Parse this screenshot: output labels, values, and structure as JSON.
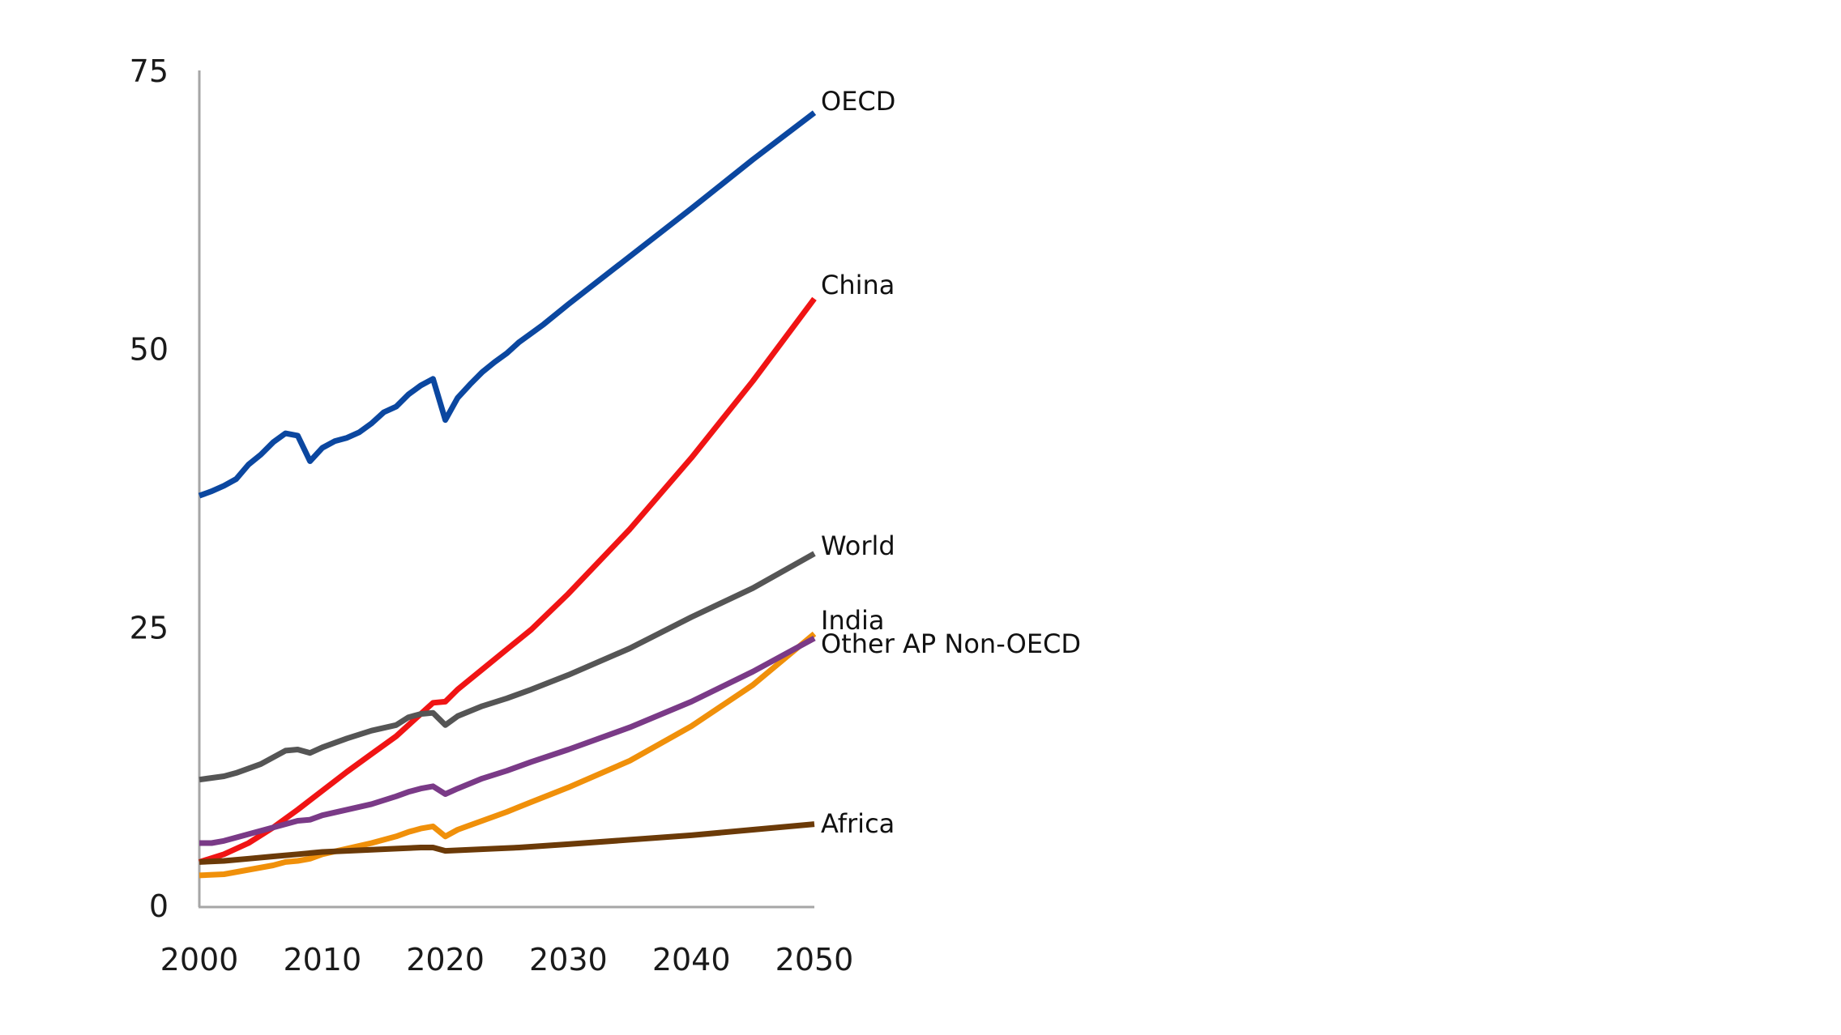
{
  "chart_data": {
    "type": "line",
    "title": "",
    "xlabel": "",
    "ylabel": "",
    "xlim": [
      2000,
      2050
    ],
    "ylim": [
      0,
      75
    ],
    "x_ticks": [
      "2000",
      "2010",
      "2020",
      "2030",
      "2040",
      "2050"
    ],
    "y_ticks": [
      "0",
      "25",
      "50",
      "75"
    ],
    "grid": false,
    "legend": "direct labels at right end of lines",
    "series": [
      {
        "name": "OECD",
        "color": "#0b47a0",
        "x": [
          2000,
          2001,
          2002,
          2003,
          2004,
          2005,
          2006,
          2007,
          2008,
          2009,
          2010,
          2011,
          2012,
          2013,
          2014,
          2015,
          2016,
          2017,
          2018,
          2019,
          2020,
          2021,
          2022,
          2023,
          2024,
          2025,
          2026,
          2027,
          2028,
          2030,
          2035,
          2040,
          2045,
          2050
        ],
        "y": [
          36.8,
          37.2,
          37.7,
          38.3,
          39.6,
          40.5,
          41.6,
          42.4,
          42.2,
          39.9,
          41.1,
          41.7,
          42.0,
          42.5,
          43.3,
          44.3,
          44.8,
          45.9,
          46.7,
          47.3,
          43.6,
          45.6,
          46.8,
          47.9,
          48.8,
          49.6,
          50.6,
          51.4,
          52.2,
          54.0,
          58.3,
          62.6,
          67.0,
          71.2
        ]
      },
      {
        "name": "China",
        "color": "#f01414",
        "x": [
          2000,
          2002,
          2004,
          2006,
          2008,
          2010,
          2012,
          2014,
          2016,
          2018,
          2019,
          2020,
          2021,
          2023,
          2025,
          2027,
          2030,
          2035,
          2040,
          2045,
          2050
        ],
        "y": [
          3.9,
          4.6,
          5.6,
          7.0,
          8.6,
          10.3,
          12.0,
          13.6,
          15.2,
          17.2,
          18.2,
          18.3,
          19.4,
          21.2,
          23.0,
          24.8,
          28.0,
          33.8,
          40.2,
          47.1,
          54.5
        ]
      },
      {
        "name": "World",
        "color": "#555555",
        "x": [
          2000,
          2002,
          2003,
          2004,
          2005,
          2006,
          2007,
          2008,
          2009,
          2010,
          2012,
          2014,
          2016,
          2017,
          2018,
          2019,
          2020,
          2021,
          2023,
          2025,
          2027,
          2030,
          2035,
          2040,
          2045,
          2050
        ],
        "y": [
          11.3,
          11.6,
          11.9,
          12.3,
          12.7,
          13.3,
          13.9,
          14.0,
          13.7,
          14.2,
          15.0,
          15.7,
          16.2,
          16.9,
          17.2,
          17.3,
          16.2,
          17.0,
          17.9,
          18.6,
          19.4,
          20.7,
          23.1,
          25.9,
          28.5,
          31.6
        ]
      },
      {
        "name": "India",
        "color": "#f0900a",
        "x": [
          2000,
          2002,
          2004,
          2006,
          2007,
          2008,
          2009,
          2010,
          2012,
          2014,
          2016,
          2017,
          2018,
          2019,
          2020,
          2021,
          2023,
          2025,
          2027,
          2030,
          2035,
          2040,
          2045,
          2050
        ],
        "y": [
          2.7,
          2.8,
          3.2,
          3.6,
          3.9,
          4.0,
          4.2,
          4.6,
          5.1,
          5.6,
          6.2,
          6.6,
          6.9,
          7.1,
          6.2,
          6.8,
          7.6,
          8.4,
          9.3,
          10.6,
          13.0,
          16.1,
          19.8,
          24.4
        ]
      },
      {
        "name": "Other AP Non-OECD",
        "color": "#7a3a87",
        "x": [
          2000,
          2001,
          2002,
          2004,
          2006,
          2008,
          2009,
          2010,
          2012,
          2014,
          2016,
          2017,
          2018,
          2019,
          2020,
          2021,
          2023,
          2025,
          2027,
          2030,
          2035,
          2040,
          2045,
          2050
        ],
        "y": [
          5.6,
          5.6,
          5.8,
          6.4,
          7.0,
          7.6,
          7.7,
          8.1,
          8.6,
          9.1,
          9.8,
          10.2,
          10.5,
          10.7,
          10.0,
          10.5,
          11.4,
          12.1,
          12.9,
          14.0,
          16.0,
          18.3,
          21.0,
          24.0
        ]
      },
      {
        "name": "Africa",
        "color": "#6b3a08",
        "x": [
          2000,
          2002,
          2004,
          2006,
          2008,
          2010,
          2012,
          2014,
          2016,
          2018,
          2019,
          2020,
          2022,
          2024,
          2026,
          2030,
          2035,
          2040,
          2045,
          2050
        ],
        "y": [
          3.9,
          4.0,
          4.2,
          4.4,
          4.6,
          4.8,
          4.9,
          5.0,
          5.1,
          5.2,
          5.2,
          4.9,
          5.0,
          5.1,
          5.2,
          5.5,
          5.9,
          6.3,
          6.8,
          7.3
        ]
      }
    ]
  }
}
